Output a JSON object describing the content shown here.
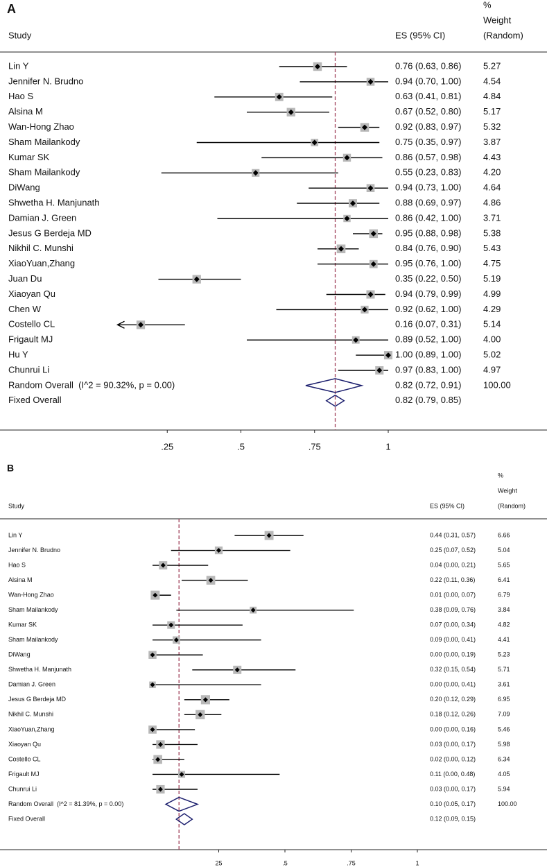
{
  "chart_data": [
    {
      "type": "forest",
      "panel": "A",
      "study_header": "Study",
      "es_header": "ES (95% CI)",
      "weight_header": [
        "%",
        "Weight",
        "(Random)"
      ],
      "xlim": [
        0.1,
        1
      ],
      "xticks": [
        {
          "value": 0.25,
          "label": ".25"
        },
        {
          "value": 0.5,
          "label": ".5"
        },
        {
          "value": 0.75,
          "label": ".75"
        },
        1
      ],
      "studies": [
        {
          "name": "Lin Y",
          "es": 0.76,
          "lo": 0.63,
          "hi": 0.86,
          "weight": 5.27,
          "label": "0.76 (0.63, 0.86)",
          "weight_label": "5.27"
        },
        {
          "name": "Jennifer N. Brudno",
          "es": 0.94,
          "lo": 0.7,
          "hi": 1.0,
          "weight": 4.54,
          "label": "0.94 (0.70, 1.00)",
          "weight_label": "4.54"
        },
        {
          "name": "Hao S",
          "es": 0.63,
          "lo": 0.41,
          "hi": 0.81,
          "weight": 4.84,
          "label": "0.63 (0.41, 0.81)",
          "weight_label": "4.84"
        },
        {
          "name": "Alsina M",
          "es": 0.67,
          "lo": 0.52,
          "hi": 0.8,
          "weight": 5.17,
          "label": "0.67 (0.52, 0.80)",
          "weight_label": "5.17"
        },
        {
          "name": "Wan-Hong Zhao",
          "es": 0.92,
          "lo": 0.83,
          "hi": 0.97,
          "weight": 5.32,
          "label": "0.92 (0.83, 0.97)",
          "weight_label": "5.32"
        },
        {
          "name": "Sham Mailankody",
          "es": 0.75,
          "lo": 0.35,
          "hi": 0.97,
          "weight": 3.87,
          "label": "0.75 (0.35, 0.97)",
          "weight_label": "3.87"
        },
        {
          "name": "Kumar SK",
          "es": 0.86,
          "lo": 0.57,
          "hi": 0.98,
          "weight": 4.43,
          "label": "0.86 (0.57, 0.98)",
          "weight_label": "4.43"
        },
        {
          "name": "Sham Mailankody",
          "es": 0.55,
          "lo": 0.23,
          "hi": 0.83,
          "weight": 4.2,
          "label": "0.55 (0.23, 0.83)",
          "weight_label": "4.20"
        },
        {
          "name": "DiWang",
          "es": 0.94,
          "lo": 0.73,
          "hi": 1.0,
          "weight": 4.64,
          "label": "0.94 (0.73, 1.00)",
          "weight_label": "4.64"
        },
        {
          "name": "Shwetha H. Manjunath",
          "es": 0.88,
          "lo": 0.69,
          "hi": 0.97,
          "weight": 4.86,
          "label": "0.88 (0.69, 0.97)",
          "weight_label": "4.86"
        },
        {
          "name": "Damian J. Green",
          "es": 0.86,
          "lo": 0.42,
          "hi": 1.0,
          "weight": 3.71,
          "label": "0.86 (0.42, 1.00)",
          "weight_label": "3.71"
        },
        {
          "name": "Jesus G Berdeja MD",
          "es": 0.95,
          "lo": 0.88,
          "hi": 0.98,
          "weight": 5.38,
          "label": "0.95 (0.88, 0.98)",
          "weight_label": "5.38"
        },
        {
          "name": "Nikhil C. Munshi",
          "es": 0.84,
          "lo": 0.76,
          "hi": 0.9,
          "weight": 5.43,
          "label": "0.84 (0.76, 0.90)",
          "weight_label": "5.43"
        },
        {
          "name": "XiaoYuan,Zhang",
          "es": 0.95,
          "lo": 0.76,
          "hi": 1.0,
          "weight": 4.75,
          "label": "0.95 (0.76, 1.00)",
          "weight_label": "4.75"
        },
        {
          "name": "Juan Du",
          "es": 0.35,
          "lo": 0.22,
          "hi": 0.5,
          "weight": 5.19,
          "label": "0.35 (0.22, 0.50)",
          "weight_label": "5.19"
        },
        {
          "name": "Xiaoyan Qu",
          "es": 0.94,
          "lo": 0.79,
          "hi": 0.99,
          "weight": 4.99,
          "label": "0.94 (0.79, 0.99)",
          "weight_label": "4.99"
        },
        {
          "name": "Chen W",
          "es": 0.92,
          "lo": 0.62,
          "hi": 1.0,
          "weight": 4.29,
          "label": "0.92 (0.62, 1.00)",
          "weight_label": "4.29"
        },
        {
          "name": "Costello CL",
          "es": 0.16,
          "lo": 0.07,
          "hi": 0.31,
          "weight": 5.14,
          "label": "0.16 (0.07, 0.31)",
          "weight_label": "5.14"
        },
        {
          "name": "Frigault MJ",
          "es": 0.89,
          "lo": 0.52,
          "hi": 1.0,
          "weight": 4.0,
          "label": "0.89 (0.52, 1.00)",
          "weight_label": "4.00"
        },
        {
          "name": "Hu Y",
          "es": 1.0,
          "lo": 0.89,
          "hi": 1.0,
          "weight": 5.02,
          "label": "1.00 (0.89, 1.00)",
          "weight_label": "5.02"
        },
        {
          "name": "Chunrui Li",
          "es": 0.97,
          "lo": 0.83,
          "hi": 1.0,
          "weight": 4.97,
          "label": "0.97 (0.83, 1.00)",
          "weight_label": "4.97"
        }
      ],
      "overall": [
        {
          "name": "Random Overall  (I^2 = 90.32%, p = 0.00)",
          "es": 0.82,
          "lo": 0.72,
          "hi": 0.91,
          "weight": 100,
          "label": "0.82 (0.72, 0.91)",
          "weight_label": "100.00"
        },
        {
          "name": "Fixed Overall",
          "es": 0.82,
          "lo": 0.79,
          "hi": 0.85,
          "label": "0.82 (0.79, 0.85)"
        }
      ]
    },
    {
      "type": "forest",
      "panel": "B",
      "study_header": "Study",
      "es_header": "ES (95% CI)",
      "weight_header": [
        "%",
        "Weight",
        "(Random)"
      ],
      "xlim": [
        0,
        1
      ],
      "xticks": [
        {
          "value": 0.25,
          "label": "25"
        },
        {
          "value": 0.5,
          "label": ".5"
        },
        {
          "value": 0.75,
          "label": ".75"
        },
        1
      ],
      "studies": [
        {
          "name": "Lin Y",
          "es": 0.44,
          "lo": 0.31,
          "hi": 0.57,
          "weight": 6.66,
          "label": "0.44 (0.31, 0.57)",
          "weight_label": "6.66"
        },
        {
          "name": "Jennifer N. Brudno",
          "es": 0.25,
          "lo": 0.07,
          "hi": 0.52,
          "weight": 5.04,
          "label": "0.25 (0.07, 0.52)",
          "weight_label": "5.04"
        },
        {
          "name": "Hao S",
          "es": 0.04,
          "lo": 0.0,
          "hi": 0.21,
          "weight": 5.65,
          "label": "0.04 (0.00, 0.21)",
          "weight_label": "5.65"
        },
        {
          "name": "Alsina M",
          "es": 0.22,
          "lo": 0.11,
          "hi": 0.36,
          "weight": 6.41,
          "label": "0.22 (0.11, 0.36)",
          "weight_label": "6.41"
        },
        {
          "name": "Wan-Hong Zhao",
          "es": 0.01,
          "lo": 0.0,
          "hi": 0.07,
          "weight": 6.79,
          "label": "0.01 (0.00, 0.07)",
          "weight_label": "6.79"
        },
        {
          "name": "Sham Mailankody",
          "es": 0.38,
          "lo": 0.09,
          "hi": 0.76,
          "weight": 3.84,
          "label": "0.38 (0.09, 0.76)",
          "weight_label": "3.84"
        },
        {
          "name": "Kumar SK",
          "es": 0.07,
          "lo": 0.0,
          "hi": 0.34,
          "weight": 4.82,
          "label": "0.07 (0.00, 0.34)",
          "weight_label": "4.82"
        },
        {
          "name": "Sham Mailankody",
          "es": 0.09,
          "lo": 0.0,
          "hi": 0.41,
          "weight": 4.41,
          "label": "0.09 (0.00, 0.41)",
          "weight_label": "4.41"
        },
        {
          "name": "DiWang",
          "es": 0.0,
          "lo": 0.0,
          "hi": 0.19,
          "weight": 5.23,
          "label": "0.00 (0.00, 0.19)",
          "weight_label": "5.23"
        },
        {
          "name": "Shwetha H. Manjunath",
          "es": 0.32,
          "lo": 0.15,
          "hi": 0.54,
          "weight": 5.71,
          "label": "0.32 (0.15, 0.54)",
          "weight_label": "5.71"
        },
        {
          "name": "Damian J. Green",
          "es": 0.0,
          "lo": 0.0,
          "hi": 0.41,
          "weight": 3.61,
          "label": "0.00 (0.00, 0.41)",
          "weight_label": "3.61"
        },
        {
          "name": "Jesus G Berdeja MD",
          "es": 0.2,
          "lo": 0.12,
          "hi": 0.29,
          "weight": 6.95,
          "label": "0.20 (0.12, 0.29)",
          "weight_label": "6.95"
        },
        {
          "name": "Nikhil C. Munshi",
          "es": 0.18,
          "lo": 0.12,
          "hi": 0.26,
          "weight": 7.09,
          "label": "0.18 (0.12, 0.26)",
          "weight_label": "7.09"
        },
        {
          "name": "XiaoYuan,Zhang",
          "es": 0.0,
          "lo": 0.0,
          "hi": 0.16,
          "weight": 5.46,
          "label": "0.00 (0.00, 0.16)",
          "weight_label": "5.46"
        },
        {
          "name": "Xiaoyan Qu",
          "es": 0.03,
          "lo": 0.0,
          "hi": 0.17,
          "weight": 5.98,
          "label": "0.03 (0.00, 0.17)",
          "weight_label": "5.98"
        },
        {
          "name": "Costello CL",
          "es": 0.02,
          "lo": 0.0,
          "hi": 0.12,
          "weight": 6.34,
          "label": "0.02 (0.00, 0.12)",
          "weight_label": "6.34"
        },
        {
          "name": "Frigault MJ",
          "es": 0.11,
          "lo": 0.0,
          "hi": 0.48,
          "weight": 4.05,
          "label": "0.11 (0.00, 0.48)",
          "weight_label": "4.05"
        },
        {
          "name": "Chunrui Li",
          "es": 0.03,
          "lo": 0.0,
          "hi": 0.17,
          "weight": 5.94,
          "label": "0.03 (0.00, 0.17)",
          "weight_label": "5.94"
        }
      ],
      "overall": [
        {
          "name": "Random Overall  (I^2 = 81.39%, p = 0.00)",
          "es": 0.1,
          "lo": 0.05,
          "hi": 0.17,
          "weight": 100,
          "label": "0.10 (0.05, 0.17)",
          "weight_label": "100.00"
        },
        {
          "name": "Fixed Overall",
          "es": 0.12,
          "lo": 0.09,
          "hi": 0.15,
          "label": "0.12 (0.09, 0.15)"
        }
      ]
    }
  ]
}
